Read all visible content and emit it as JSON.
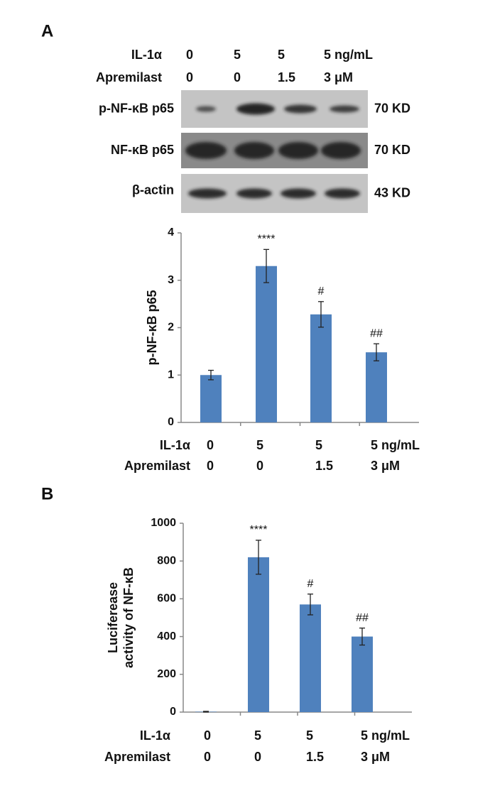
{
  "panel_a": {
    "label": "A",
    "conditions": [
      {
        "name": "IL-1α",
        "values": [
          "0",
          "5",
          "5",
          "5 ng/mL"
        ]
      },
      {
        "name": "Apremilast",
        "values": [
          "0",
          "0",
          "1.5",
          "3 μM"
        ]
      }
    ],
    "blots": [
      {
        "name": "p-NF-κB p65",
        "size": "70 KD"
      },
      {
        "name": "NF-κB p65",
        "size": "70 KD"
      },
      {
        "name": "β-actin",
        "size": "43 KD"
      }
    ]
  },
  "panel_b": {
    "label": "B"
  },
  "chart_data": [
    {
      "type": "bar",
      "y_label": "p-NF-κB p65",
      "categories": [
        null,
        null,
        null,
        null
      ],
      "values": [
        1.0,
        3.3,
        2.28,
        1.48
      ],
      "errors": [
        0.1,
        0.35,
        0.27,
        0.18
      ],
      "annotations": [
        null,
        "****",
        "#",
        "##"
      ],
      "color": "#4f81bd",
      "ylim": [
        0,
        4
      ],
      "yticks": [
        0,
        1,
        2,
        3,
        4
      ],
      "conditions": [
        {
          "name": "IL-1α",
          "values": [
            "0",
            "5",
            "5",
            "5 ng/mL"
          ]
        },
        {
          "name": "Apremilast",
          "values": [
            "0",
            "0",
            "1.5",
            "3 μM"
          ]
        }
      ]
    },
    {
      "type": "bar",
      "y_label": [
        "Luciferease",
        "activity of NF-κB"
      ],
      "categories": [
        null,
        null,
        null,
        null
      ],
      "values": [
        2,
        820,
        570,
        400
      ],
      "errors": [
        2,
        90,
        55,
        45
      ],
      "annotations": [
        null,
        "****",
        "#",
        "##"
      ],
      "color": "#4f81bd",
      "ylim": [
        0,
        1000
      ],
      "yticks": [
        0,
        200,
        400,
        600,
        800,
        1000
      ],
      "conditions": [
        {
          "name": "IL-1α",
          "values": [
            "0",
            "5",
            "5",
            "5 ng/mL"
          ]
        },
        {
          "name": "Apremilast",
          "values": [
            "0",
            "0",
            "1.5",
            "3 μM"
          ]
        }
      ]
    }
  ]
}
